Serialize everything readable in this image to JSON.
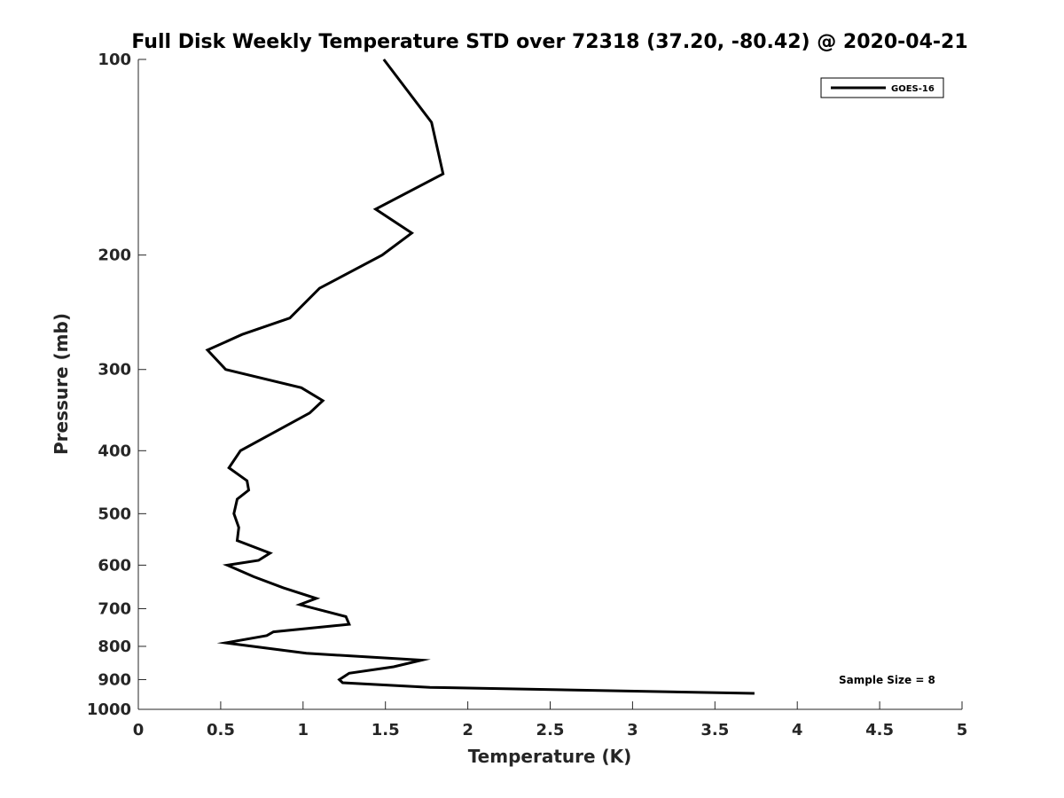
{
  "chart_data": {
    "type": "line",
    "title": "Full Disk Weekly Temperature STD over 72318 (37.20, -80.42) @ 2020-04-21",
    "xlabel": "Temperature (K)",
    "ylabel": "Pressure (mb)",
    "xlim": [
      0,
      5
    ],
    "ylim": [
      100,
      1000
    ],
    "y_scale": "log",
    "y_direction": "reversed",
    "x_ticks": [
      "0",
      "0.5",
      "1",
      "1.5",
      "2",
      "2.5",
      "3",
      "3.5",
      "4",
      "4.5",
      "5"
    ],
    "x_tick_values": [
      0,
      0.5,
      1,
      1.5,
      2,
      2.5,
      3,
      3.5,
      4,
      4.5,
      5
    ],
    "y_ticks": [
      "100",
      "200",
      "300",
      "400",
      "500",
      "600",
      "700",
      "800",
      "900",
      "1000"
    ],
    "y_tick_values": [
      100,
      200,
      300,
      400,
      500,
      600,
      700,
      800,
      900,
      1000
    ],
    "grid": false,
    "legend_position": "top-right",
    "annotation": "Sample Size = 8",
    "series": [
      {
        "name": "GOES-16",
        "color": "#000000",
        "points": [
          [
            1.49,
            100
          ],
          [
            1.78,
            125
          ],
          [
            1.85,
            150
          ],
          [
            1.44,
            170
          ],
          [
            1.66,
            185
          ],
          [
            1.48,
            200
          ],
          [
            1.1,
            225
          ],
          [
            0.92,
            250
          ],
          [
            0.63,
            265
          ],
          [
            0.42,
            280
          ],
          [
            0.53,
            300
          ],
          [
            0.99,
            320
          ],
          [
            1.12,
            335
          ],
          [
            1.04,
            350
          ],
          [
            0.62,
            400
          ],
          [
            0.55,
            425
          ],
          [
            0.66,
            445
          ],
          [
            0.67,
            460
          ],
          [
            0.6,
            475
          ],
          [
            0.58,
            500
          ],
          [
            0.61,
            525
          ],
          [
            0.6,
            550
          ],
          [
            0.8,
            575
          ],
          [
            0.73,
            590
          ],
          [
            0.54,
            600
          ],
          [
            0.7,
            625
          ],
          [
            0.88,
            650
          ],
          [
            1.08,
            675
          ],
          [
            0.98,
            690
          ],
          [
            1.26,
            720
          ],
          [
            1.28,
            740
          ],
          [
            0.82,
            760
          ],
          [
            0.78,
            770
          ],
          [
            0.53,
            790
          ],
          [
            1.02,
            820
          ],
          [
            1.72,
            840
          ],
          [
            1.55,
            860
          ],
          [
            1.28,
            880
          ],
          [
            1.22,
            900
          ],
          [
            1.24,
            910
          ],
          [
            1.77,
            925
          ],
          [
            3.74,
            945
          ]
        ]
      }
    ]
  }
}
